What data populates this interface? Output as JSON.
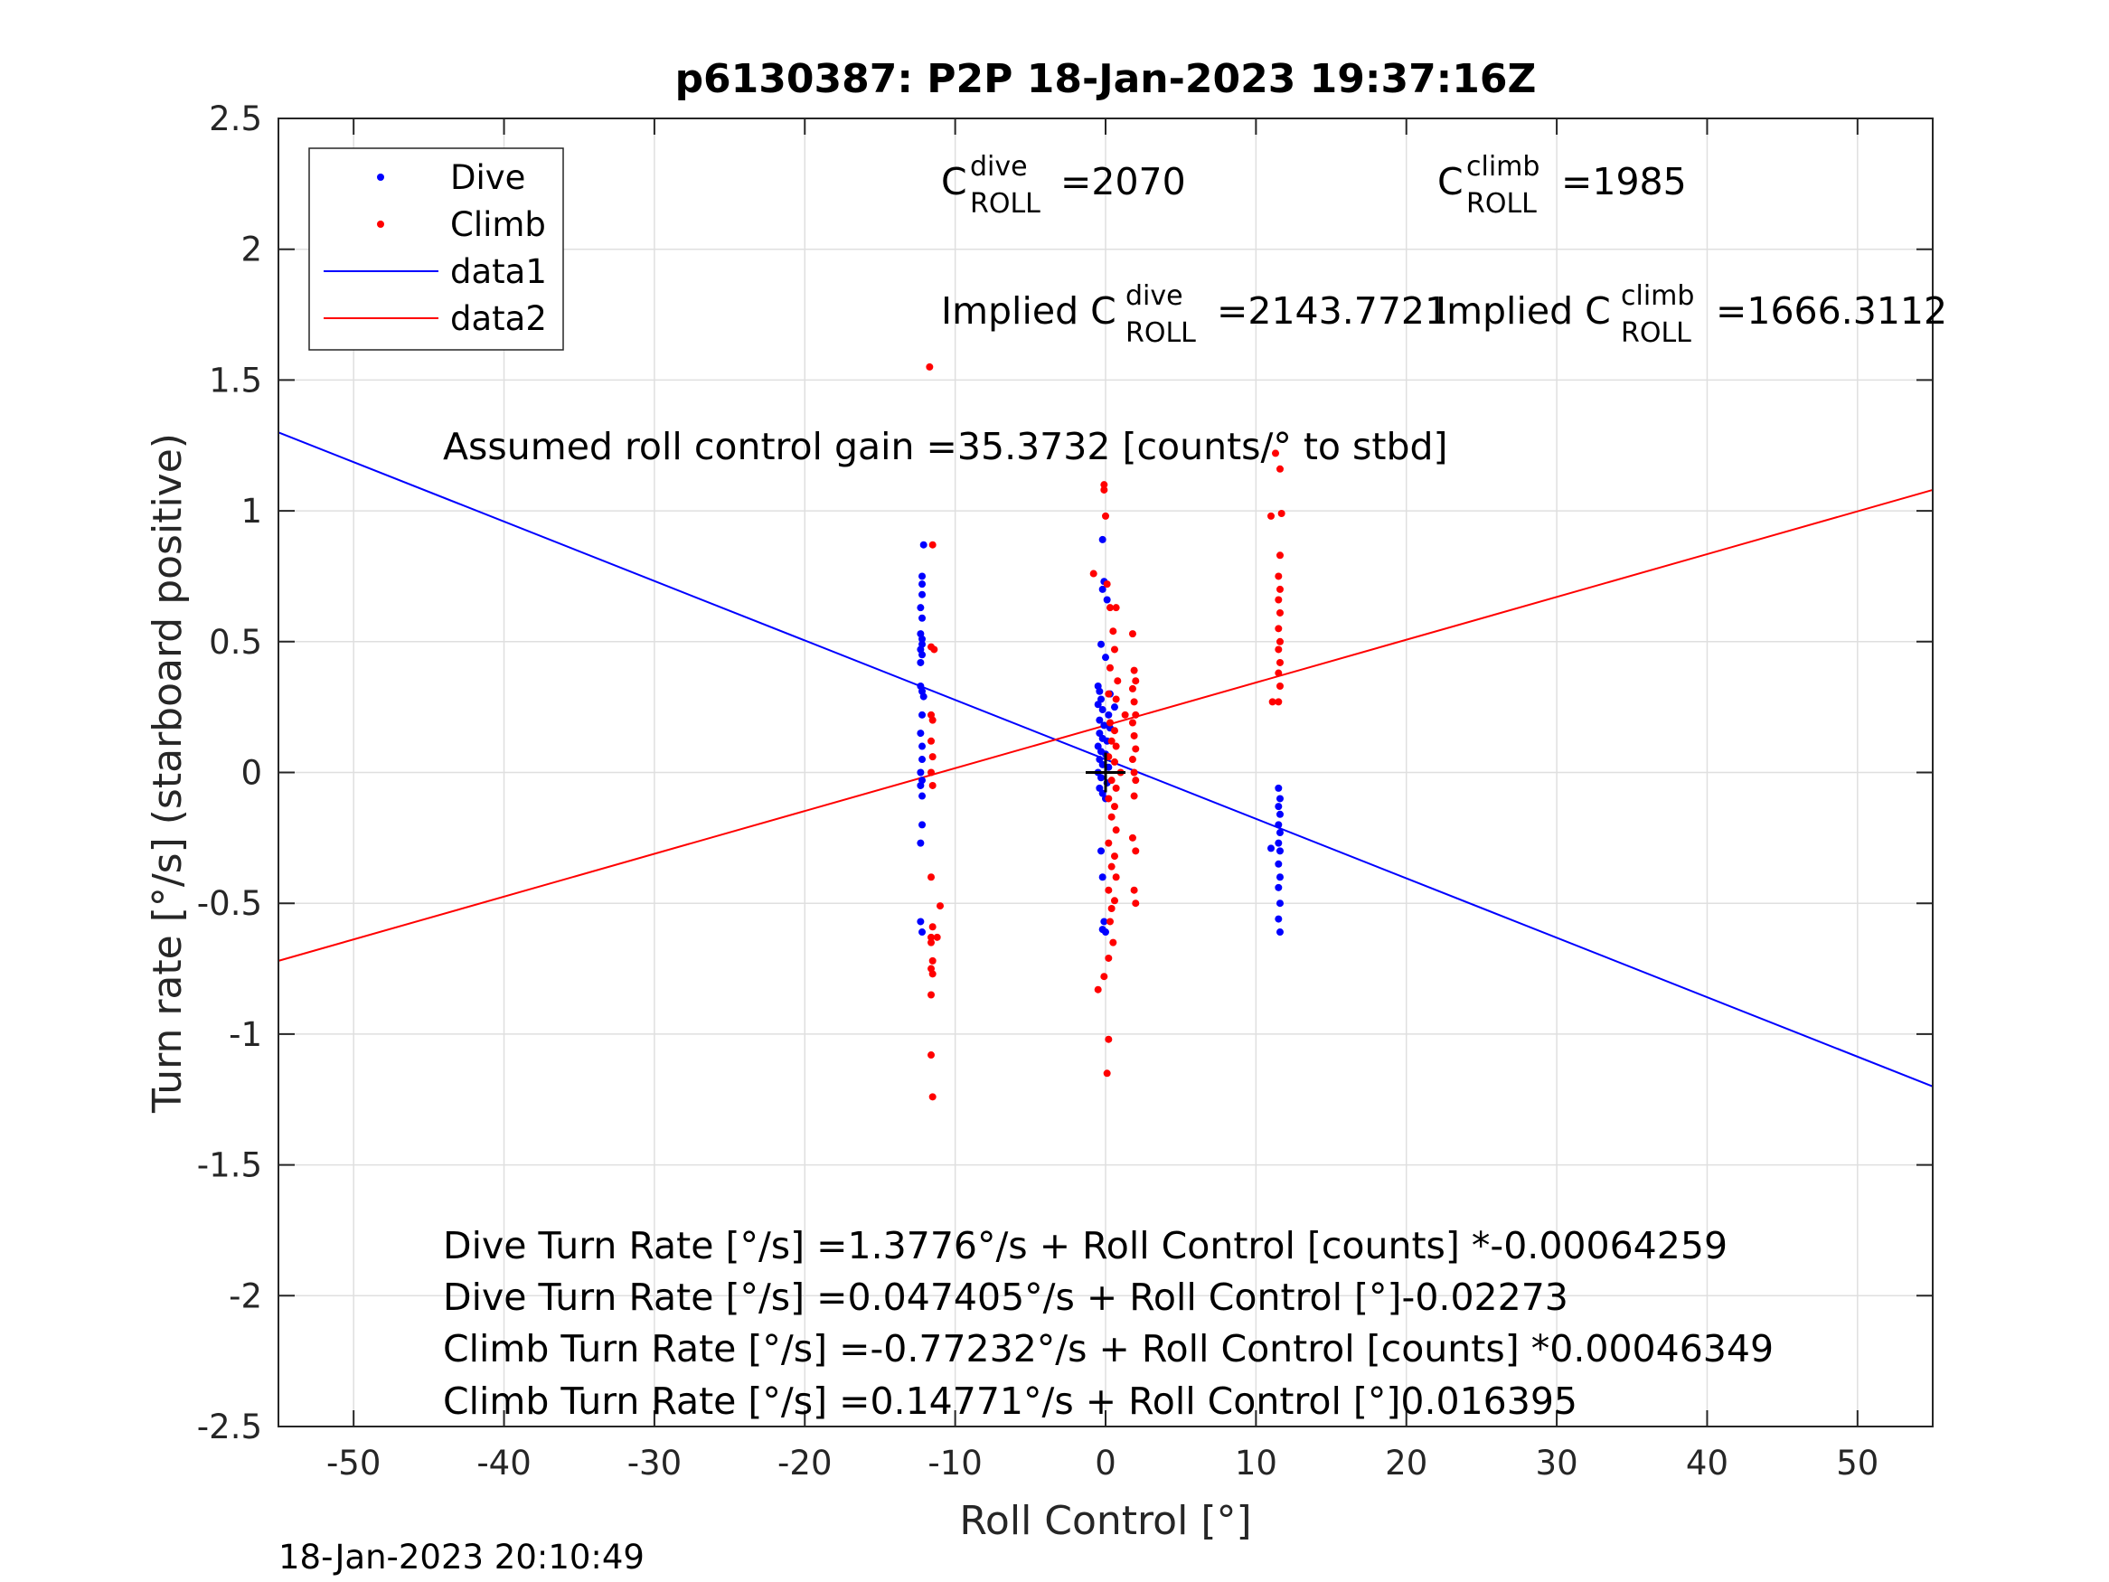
{
  "chart_data": {
    "type": "scatter",
    "title": "p6130387: P2P 18-Jan-2023 19:37:16Z",
    "xlabel": "Roll Control [°]",
    "ylabel": "Turn rate [°/s] (starboard positive)",
    "xlim": [
      -55,
      55
    ],
    "ylim": [
      -2.5,
      2.5
    ],
    "xticks": [
      -50,
      -40,
      -30,
      -20,
      -10,
      0,
      10,
      20,
      30,
      40,
      50
    ],
    "yticks": [
      2.5,
      2,
      1.5,
      1,
      0.5,
      0,
      -0.5,
      -1,
      -1.5,
      -2,
      -2.5
    ],
    "grid": true,
    "legend": {
      "location": "top-left",
      "entries": [
        {
          "label": "Dive",
          "kind": "marker",
          "color": "#0000ff"
        },
        {
          "label": "Climb",
          "kind": "marker",
          "color": "#ff0000"
        },
        {
          "label": "data1",
          "kind": "line",
          "color": "#0000ff"
        },
        {
          "label": "data2",
          "kind": "line",
          "color": "#ff0000"
        }
      ]
    },
    "series": [
      {
        "name": "Dive",
        "color": "#0000ff",
        "marker": "dot",
        "points": [
          [
            -12.1,
            0.87
          ],
          [
            -12.2,
            0.75
          ],
          [
            -12.2,
            0.72
          ],
          [
            -12.2,
            0.68
          ],
          [
            -12.3,
            0.63
          ],
          [
            -12.2,
            0.59
          ],
          [
            -12.3,
            0.53
          ],
          [
            -12.2,
            0.51
          ],
          [
            -12.2,
            0.49
          ],
          [
            -12.3,
            0.47
          ],
          [
            -12.2,
            0.45
          ],
          [
            -12.3,
            0.42
          ],
          [
            -12.3,
            0.33
          ],
          [
            -12.2,
            0.31
          ],
          [
            -12.1,
            0.29
          ],
          [
            -12.2,
            0.22
          ],
          [
            -12.3,
            0.15
          ],
          [
            -12.2,
            0.1
          ],
          [
            -12.2,
            0.05
          ],
          [
            -12.3,
            0.0
          ],
          [
            -12.2,
            -0.03
          ],
          [
            -12.3,
            -0.05
          ],
          [
            -12.2,
            -0.09
          ],
          [
            -12.2,
            -0.2
          ],
          [
            -12.3,
            -0.27
          ],
          [
            -12.3,
            -0.57
          ],
          [
            -12.2,
            -0.61
          ],
          [
            -0.2,
            0.89
          ],
          [
            -0.1,
            0.73
          ],
          [
            -0.2,
            0.7
          ],
          [
            0.1,
            0.66
          ],
          [
            -0.3,
            0.49
          ],
          [
            0.0,
            0.44
          ],
          [
            -0.5,
            0.33
          ],
          [
            -0.4,
            0.31
          ],
          [
            -0.3,
            0.28
          ],
          [
            -0.5,
            0.26
          ],
          [
            -0.2,
            0.24
          ],
          [
            0.2,
            0.22
          ],
          [
            -0.4,
            0.2
          ],
          [
            -0.1,
            0.18
          ],
          [
            0.3,
            0.17
          ],
          [
            -0.4,
            0.15
          ],
          [
            -0.2,
            0.13
          ],
          [
            0.1,
            0.12
          ],
          [
            -0.5,
            0.1
          ],
          [
            -0.3,
            0.08
          ],
          [
            0.0,
            0.07
          ],
          [
            -0.4,
            0.05
          ],
          [
            -0.2,
            0.03
          ],
          [
            0.2,
            0.02
          ],
          [
            -0.5,
            0.0
          ],
          [
            -0.3,
            -0.02
          ],
          [
            0.1,
            -0.04
          ],
          [
            -0.4,
            -0.06
          ],
          [
            -0.2,
            -0.08
          ],
          [
            0.0,
            -0.1
          ],
          [
            -0.3,
            -0.3
          ],
          [
            -0.2,
            -0.4
          ],
          [
            -0.1,
            -0.57
          ],
          [
            -0.2,
            -0.6
          ],
          [
            0.0,
            -0.61
          ],
          [
            0.3,
            0.3
          ],
          [
            0.6,
            0.25
          ],
          [
            11.0,
            -0.29
          ],
          [
            11.5,
            -0.06
          ],
          [
            11.6,
            -0.1
          ],
          [
            11.5,
            -0.13
          ],
          [
            11.6,
            -0.16
          ],
          [
            11.5,
            -0.2
          ],
          [
            11.6,
            -0.23
          ],
          [
            11.5,
            -0.27
          ],
          [
            11.6,
            -0.3
          ],
          [
            11.5,
            -0.35
          ],
          [
            11.6,
            -0.4
          ],
          [
            11.5,
            -0.44
          ],
          [
            11.6,
            -0.5
          ],
          [
            11.5,
            -0.56
          ],
          [
            11.6,
            -0.61
          ]
        ]
      },
      {
        "name": "Climb",
        "color": "#ff0000",
        "marker": "dot",
        "points": [
          [
            -11.7,
            1.55
          ],
          [
            -11.5,
            0.87
          ],
          [
            -11.6,
            0.48
          ],
          [
            -11.4,
            0.47
          ],
          [
            -11.6,
            0.22
          ],
          [
            -11.5,
            0.2
          ],
          [
            -11.6,
            0.12
          ],
          [
            -11.5,
            0.06
          ],
          [
            -11.6,
            0.0
          ],
          [
            -11.5,
            -0.05
          ],
          [
            -11.6,
            -0.4
          ],
          [
            -11.0,
            -0.51
          ],
          [
            -11.5,
            -0.59
          ],
          [
            -11.6,
            -0.63
          ],
          [
            -11.2,
            -0.63
          ],
          [
            -11.6,
            -0.65
          ],
          [
            -11.5,
            -0.72
          ],
          [
            -11.6,
            -0.75
          ],
          [
            -11.5,
            -0.77
          ],
          [
            -11.6,
            -0.85
          ],
          [
            -11.6,
            -1.08
          ],
          [
            -11.5,
            -1.24
          ],
          [
            -0.1,
            1.1
          ],
          [
            -0.1,
            1.08
          ],
          [
            0.0,
            0.98
          ],
          [
            -0.8,
            0.76
          ],
          [
            0.1,
            0.72
          ],
          [
            0.3,
            0.63
          ],
          [
            0.7,
            0.63
          ],
          [
            0.5,
            0.54
          ],
          [
            0.6,
            0.47
          ],
          [
            0.3,
            0.4
          ],
          [
            0.8,
            0.35
          ],
          [
            0.2,
            0.3
          ],
          [
            0.7,
            0.28
          ],
          [
            1.3,
            0.22
          ],
          [
            0.3,
            0.19
          ],
          [
            0.6,
            0.16
          ],
          [
            0.4,
            0.12
          ],
          [
            0.7,
            0.1
          ],
          [
            0.2,
            0.06
          ],
          [
            0.6,
            0.04
          ],
          [
            1.0,
            0.0
          ],
          [
            0.4,
            -0.03
          ],
          [
            0.7,
            -0.06
          ],
          [
            0.2,
            -0.1
          ],
          [
            0.6,
            -0.13
          ],
          [
            0.4,
            -0.17
          ],
          [
            0.7,
            -0.22
          ],
          [
            0.2,
            -0.27
          ],
          [
            0.6,
            -0.32
          ],
          [
            0.4,
            -0.36
          ],
          [
            0.7,
            -0.4
          ],
          [
            0.2,
            -0.45
          ],
          [
            0.6,
            -0.49
          ],
          [
            0.4,
            -0.52
          ],
          [
            0.3,
            -0.57
          ],
          [
            0.5,
            -0.65
          ],
          [
            0.2,
            -0.71
          ],
          [
            -0.1,
            -0.78
          ],
          [
            -0.5,
            -0.83
          ],
          [
            0.2,
            -1.02
          ],
          [
            0.1,
            -1.15
          ],
          [
            1.8,
            0.53
          ],
          [
            1.9,
            0.39
          ],
          [
            2.0,
            0.35
          ],
          [
            1.8,
            0.32
          ],
          [
            1.9,
            0.27
          ],
          [
            2.0,
            0.22
          ],
          [
            1.8,
            0.19
          ],
          [
            1.9,
            0.14
          ],
          [
            2.0,
            0.09
          ],
          [
            1.8,
            0.05
          ],
          [
            1.9,
            0.0
          ],
          [
            2.0,
            -0.03
          ],
          [
            1.9,
            -0.09
          ],
          [
            1.8,
            -0.25
          ],
          [
            2.0,
            -0.3
          ],
          [
            1.9,
            -0.45
          ],
          [
            2.0,
            -0.5
          ],
          [
            11.3,
            1.22
          ],
          [
            11.6,
            1.16
          ],
          [
            11.0,
            0.98
          ],
          [
            11.7,
            0.99
          ],
          [
            11.6,
            0.83
          ],
          [
            11.5,
            0.75
          ],
          [
            11.6,
            0.7
          ],
          [
            11.5,
            0.66
          ],
          [
            11.6,
            0.61
          ],
          [
            11.5,
            0.55
          ],
          [
            11.6,
            0.5
          ],
          [
            11.5,
            0.47
          ],
          [
            11.6,
            0.42
          ],
          [
            11.5,
            0.38
          ],
          [
            11.6,
            0.33
          ],
          [
            11.1,
            0.27
          ],
          [
            11.5,
            0.27
          ]
        ]
      },
      {
        "name": "data1",
        "type": "line",
        "color": "#0000ff",
        "points": [
          [
            -55,
            1.3
          ],
          [
            55,
            -1.2
          ]
        ]
      },
      {
        "name": "data2",
        "type": "line",
        "color": "#ff0000",
        "points": [
          [
            -55,
            -0.72
          ],
          [
            55,
            1.08
          ]
        ]
      }
    ],
    "center_marker": {
      "x": 0,
      "y": 0,
      "symbol": "+",
      "color": "#000000"
    }
  },
  "annotations": {
    "c_dive": {
      "base": "C",
      "sup": "dive",
      "sub": "ROLL",
      "value": "=2070"
    },
    "c_climb": {
      "base": "C",
      "sup": "climb",
      "sub": "ROLL",
      "value": "=1985"
    },
    "implied_dive": {
      "prefix": "Implied C",
      "sup": "dive",
      "sub": "ROLL",
      "value": "=2143.7721"
    },
    "implied_climb": {
      "prefix": "Implied C",
      "sup": "climb",
      "sub": "ROLL",
      "value": "=1666.3112"
    },
    "gain": "Assumed roll control gain =35.3732 [counts/° to stbd]",
    "eq1": "Dive Turn Rate [°/s] =1.3776°/s + Roll Control [counts] *-0.00064259",
    "eq2": "Dive Turn Rate [°/s] =0.047405°/s + Roll Control [°]-0.02273",
    "eq3": "Climb Turn Rate [°/s] =-0.77232°/s + Roll Control [counts] *0.00046349",
    "eq4": "Climb Turn Rate [°/s] =0.14771°/s + Roll Control [°]0.016395"
  },
  "timestamp": "18-Jan-2023 20:10:49"
}
